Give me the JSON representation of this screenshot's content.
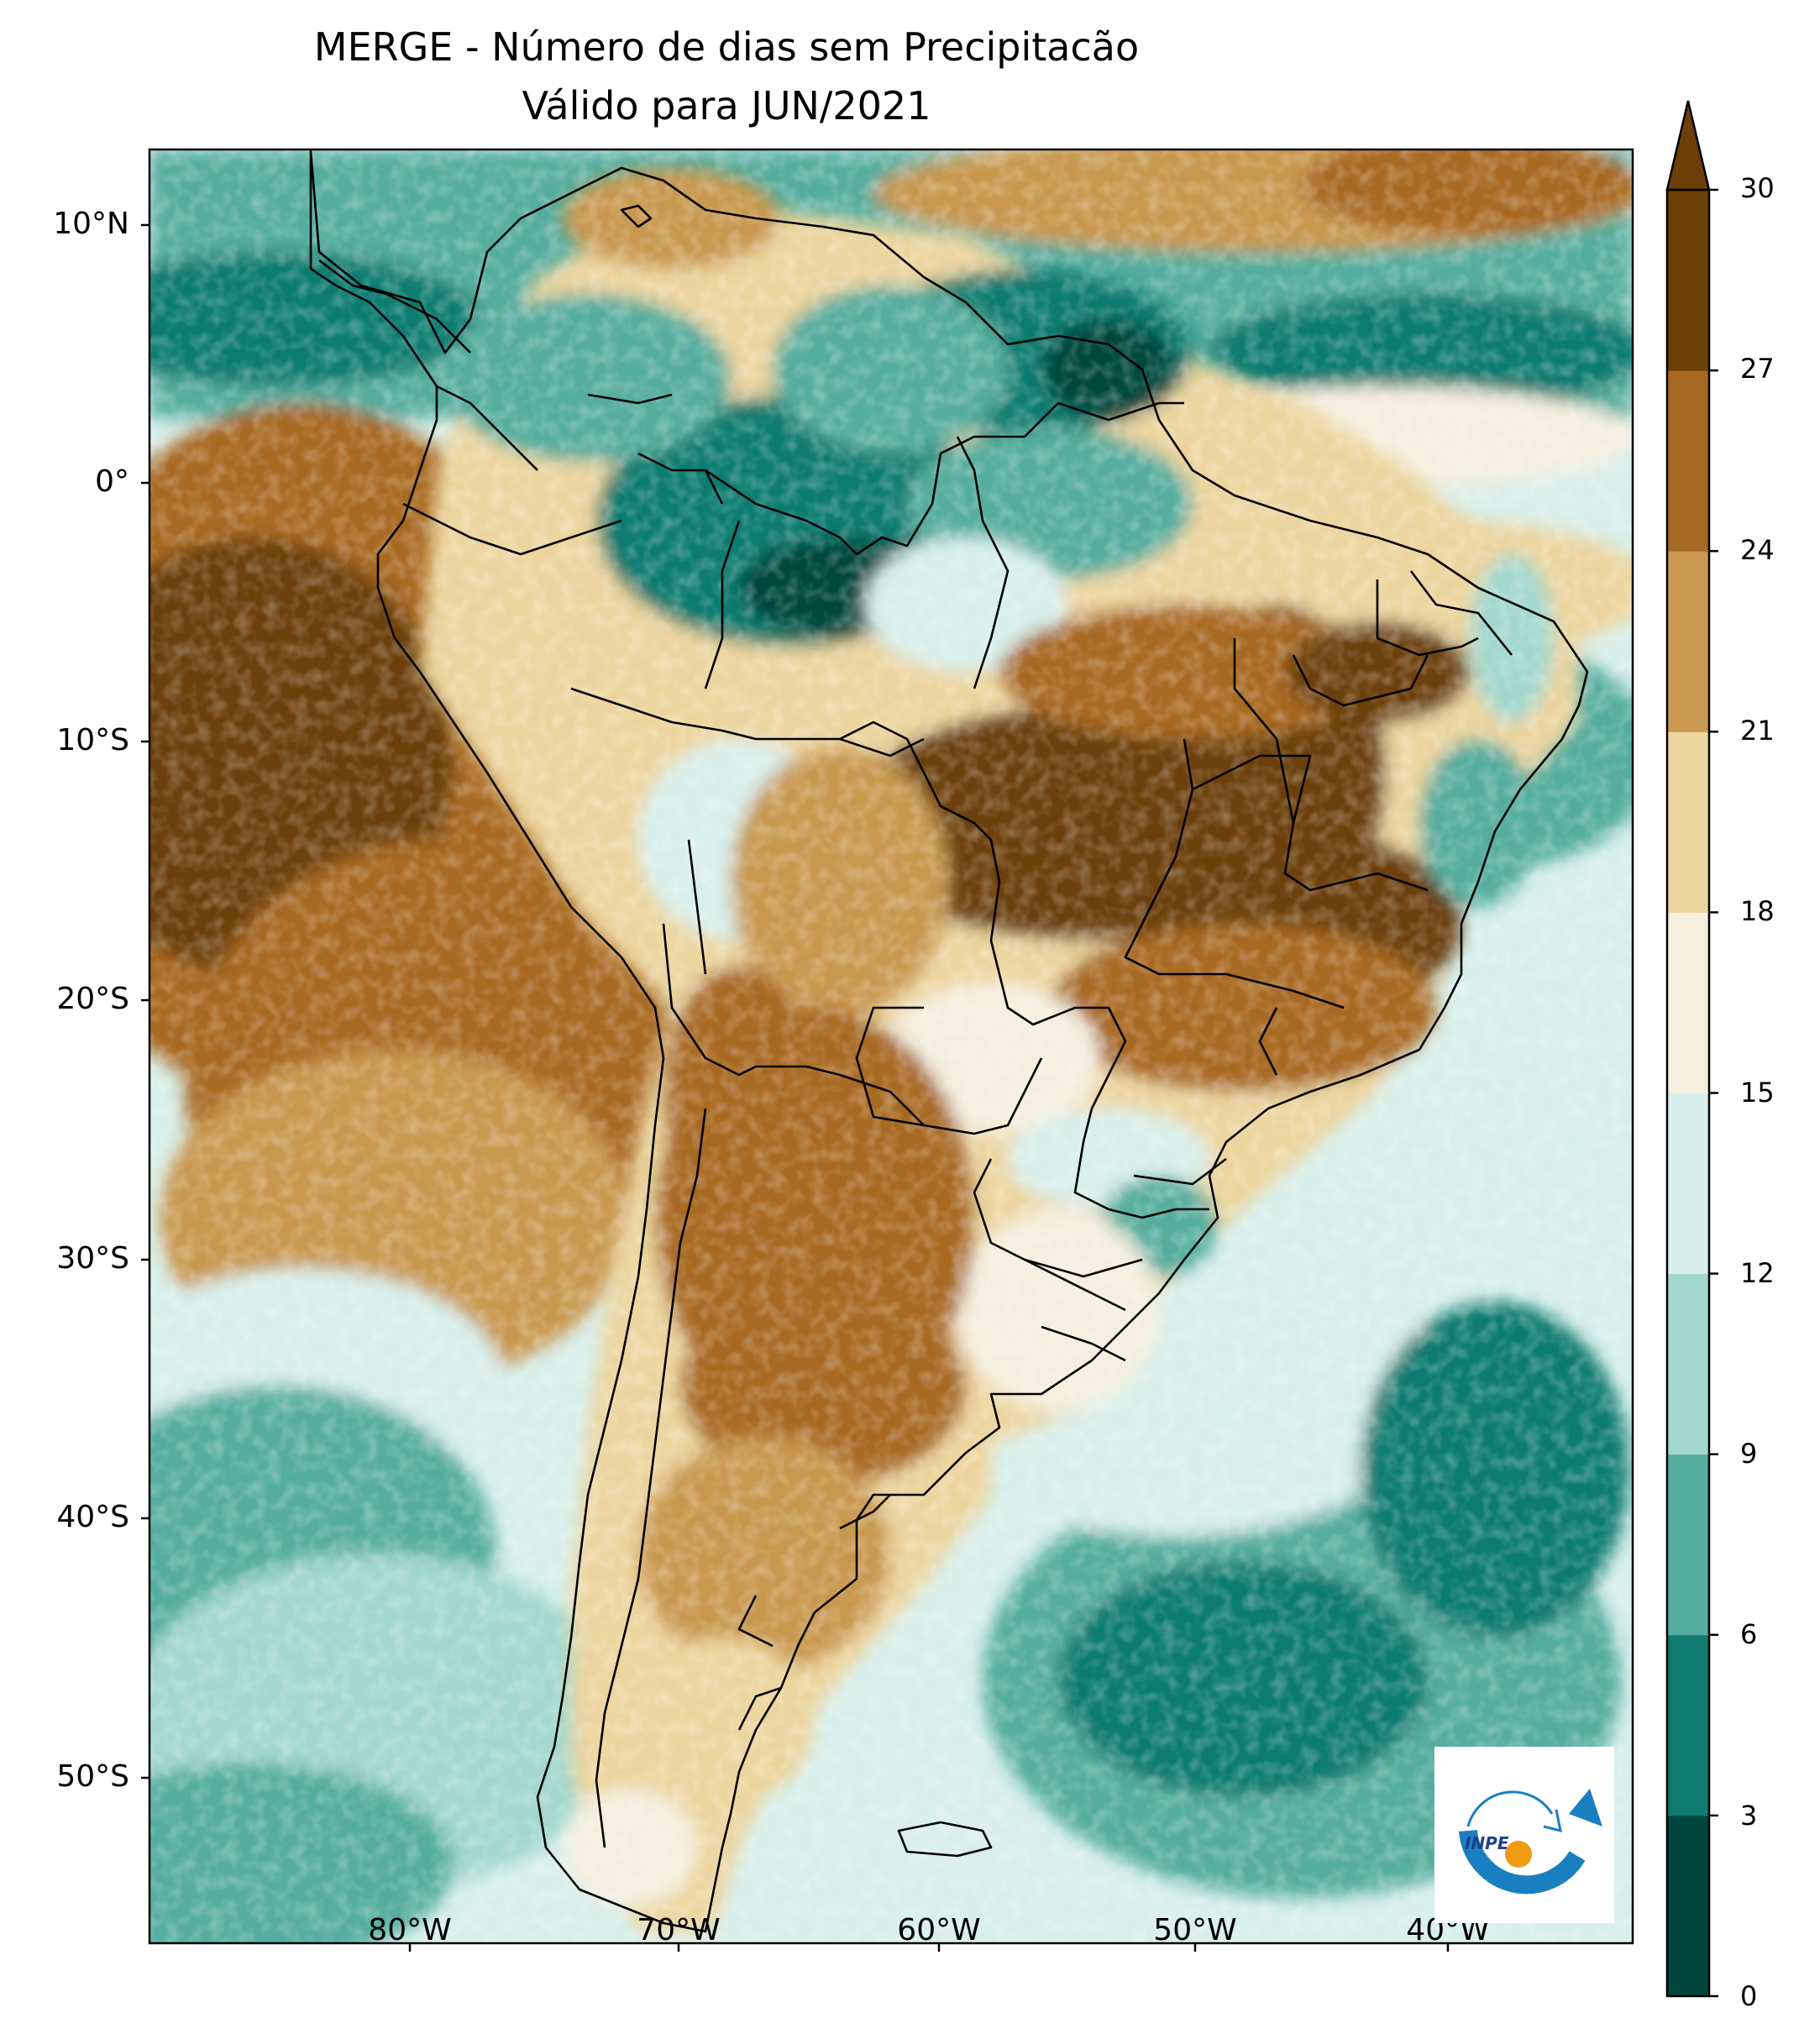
{
  "title": {
    "line1": "MERGE - Número de dias sem Precipitacão",
    "line2": "Válido para JUN/2021"
  },
  "map": {
    "region": "South America",
    "variable": "Number of days without precipitation",
    "lat_ticks": [
      "10°N",
      "0°",
      "10°S",
      "20°S",
      "30°S",
      "40°S",
      "50°S"
    ],
    "lon_ticks": [
      "80°W",
      "70°W",
      "60°W",
      "50°W",
      "40°W"
    ],
    "extent": {
      "lon_min": -90,
      "lon_max": -32,
      "lat_min": -56,
      "lat_max": 13
    }
  },
  "colorbar": {
    "ticks": [
      "0",
      "3",
      "6",
      "9",
      "12",
      "15",
      "18",
      "21",
      "24",
      "27",
      "30"
    ],
    "bin_colors": [
      "#01463c",
      "#0f7b6f",
      "#55ad9f",
      "#a2d8ce",
      "#d8efeb",
      "#f5efdf",
      "#ecd59e",
      "#c99850",
      "#a86923",
      "#6c3f08"
    ],
    "extend_color": "#6c3f08"
  },
  "logo": {
    "text": "INPE",
    "ring_color": "#1a7fc1",
    "sun_color": "#f39a13"
  }
}
